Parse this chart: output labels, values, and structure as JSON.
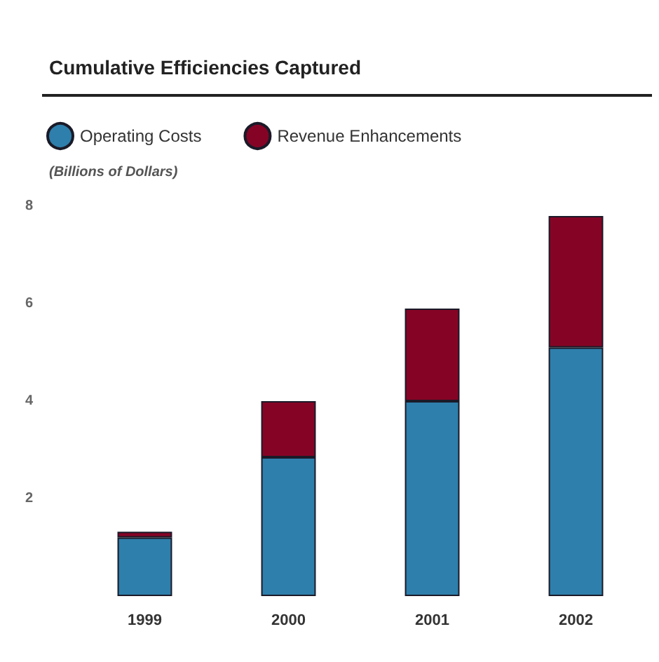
{
  "chart_data": {
    "type": "bar",
    "title": "Cumulative Efficiencies Captured",
    "ylabel": "(Billions of Dollars)",
    "categories": [
      "1999",
      "2000",
      "2001",
      "2002"
    ],
    "series": [
      {
        "name": "Operating Costs",
        "color": "#2e7fab",
        "values": [
          1.2,
          2.85,
          4.0,
          5.1
        ]
      },
      {
        "name": "Revenue Enhancements",
        "color": "#850425",
        "values": [
          0.12,
          1.15,
          1.9,
          2.7
        ]
      }
    ],
    "stacked": true,
    "ylim": [
      0,
      8
    ],
    "yticks": [
      2,
      4,
      6,
      8
    ],
    "grid": false,
    "legend": "top left"
  }
}
